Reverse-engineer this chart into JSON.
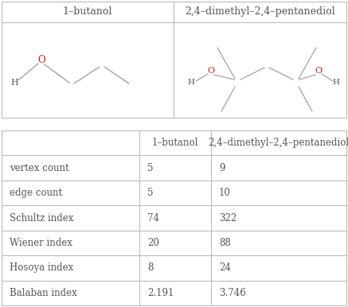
{
  "title1": "1–butanol",
  "title2": "2,4–dimethyl–2,4–pentanediol",
  "col_headers": [
    "",
    "1–butanol",
    "2,4–dimethyl–2,4–pentanediol"
  ],
  "row_labels": [
    "vertex count",
    "edge count",
    "Schultz index",
    "Wiener index",
    "Hosoya index",
    "Balaban index"
  ],
  "col1_vals": [
    "5",
    "5",
    "74",
    "20",
    "8",
    "2.191"
  ],
  "col2_vals": [
    "9",
    "10",
    "322",
    "88",
    "24",
    "3.746"
  ],
  "text_color": "#555555",
  "red_color": "#cc2200",
  "line_color": "#bbbbbb",
  "bg_color": "#ffffff",
  "mol_line_color": "#aaaaaa"
}
